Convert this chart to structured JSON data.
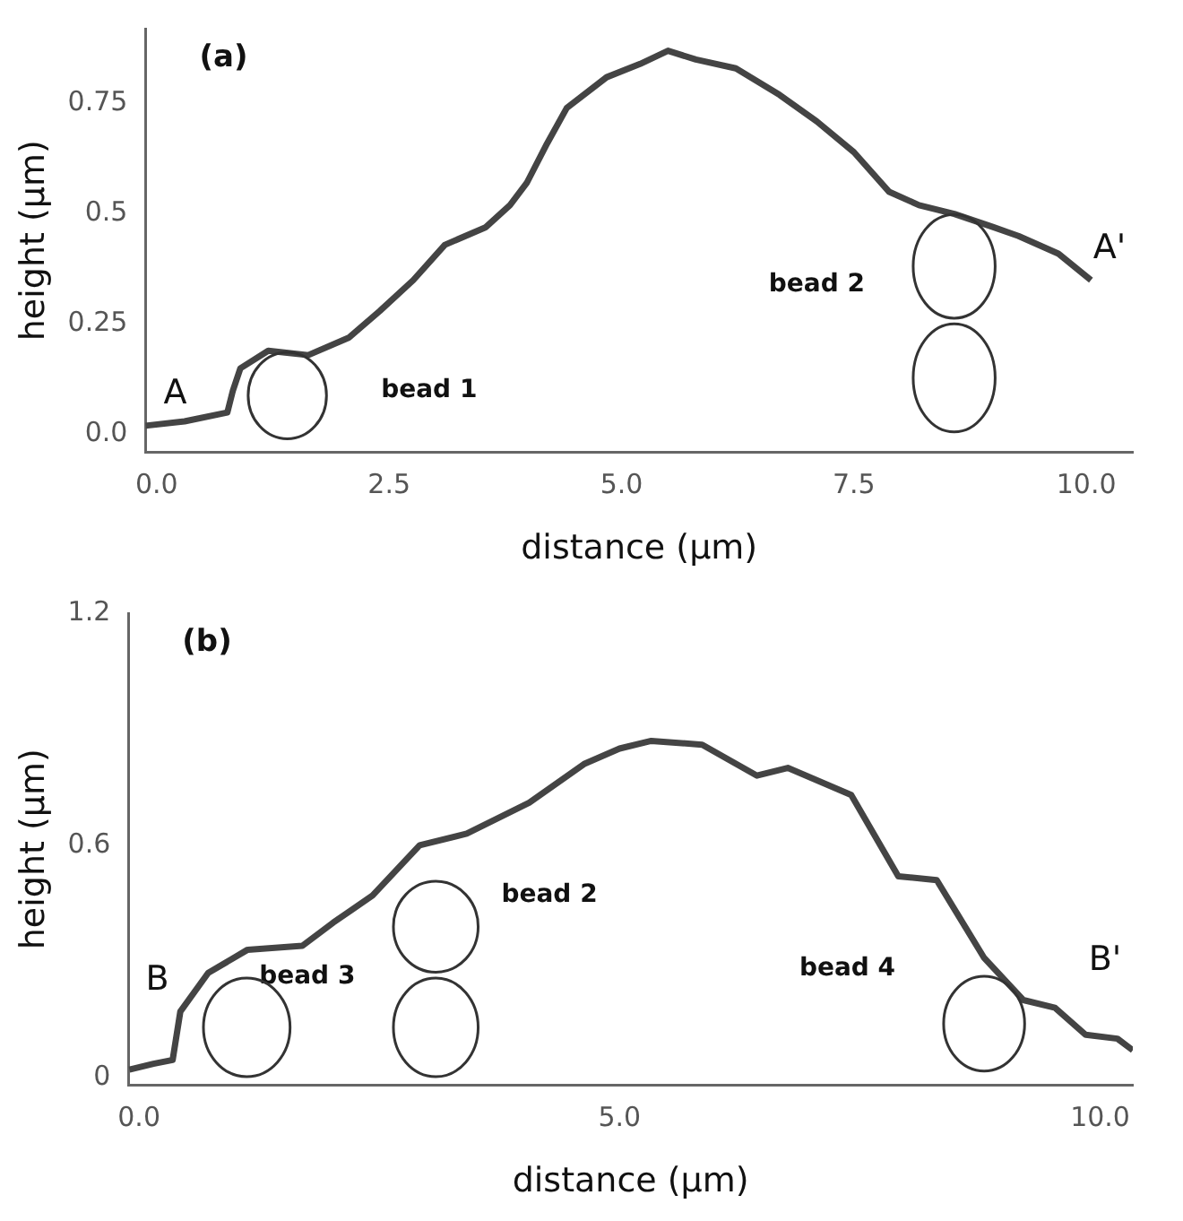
{
  "chart_data": [
    {
      "type": "line",
      "title": "(a)",
      "xlabel": "distance (µm)",
      "ylabel": "height (µm)",
      "color": "#444444",
      "x": [
        -0.12,
        0.3,
        0.76,
        0.82,
        0.9,
        1.2,
        1.63,
        2.07,
        2.4,
        2.76,
        3.1,
        3.54,
        3.8,
        3.98,
        4.2,
        4.41,
        4.84,
        5.2,
        5.5,
        5.8,
        6.23,
        6.7,
        7.1,
        7.5,
        7.88,
        8.2,
        8.58,
        9.0,
        9.27,
        9.7,
        10.05
      ],
      "values": [
        0.02,
        0.03,
        0.05,
        0.1,
        0.15,
        0.19,
        0.18,
        0.22,
        0.28,
        0.35,
        0.43,
        0.47,
        0.52,
        0.57,
        0.66,
        0.74,
        0.81,
        0.84,
        0.87,
        0.85,
        0.83,
        0.77,
        0.71,
        0.64,
        0.55,
        0.52,
        0.5,
        0.47,
        0.45,
        0.41,
        0.35
      ],
      "xlim": [
        -0.12,
        10.5
      ],
      "ylim": [
        -0.04,
        0.92
      ],
      "xticks": [
        {
          "value": 0,
          "label": "0.0"
        },
        2.5,
        {
          "value": 5,
          "label": "5.0"
        },
        7.5,
        {
          "value": 10,
          "label": "10.0"
        }
      ],
      "yticks": [
        {
          "value": 0,
          "label": "0.0"
        },
        0.25,
        0.5,
        0.75
      ],
      "grid": false,
      "legend": false,
      "marker": "none",
      "line_style": "solid",
      "annotations": [
        "A",
        "A'",
        "bead 1",
        "bead 2"
      ]
    },
    {
      "type": "line",
      "title": "(b)",
      "xlabel": "distance (µm)",
      "ylabel": "height (µm)",
      "color": "#444444",
      "x": [
        -0.1,
        0.15,
        0.35,
        0.43,
        0.72,
        1.13,
        1.7,
        2.02,
        2.43,
        2.92,
        3.41,
        4.06,
        4.63,
        5.0,
        5.33,
        5.86,
        6.43,
        6.75,
        7.41,
        7.9,
        8.3,
        8.79,
        9.2,
        9.53,
        9.85,
        10.18,
        10.34
      ],
      "values": [
        0.02,
        0.035,
        0.045,
        0.17,
        0.27,
        0.33,
        0.34,
        0.4,
        0.47,
        0.6,
        0.63,
        0.71,
        0.81,
        0.85,
        0.87,
        0.86,
        0.78,
        0.8,
        0.73,
        0.52,
        0.51,
        0.31,
        0.2,
        0.18,
        0.11,
        0.1,
        0.07
      ],
      "xlim": [
        -0.11,
        10.34
      ],
      "ylim": [
        -0.02,
        1.2
      ],
      "xticks": [
        {
          "value": 0,
          "label": "0.0"
        },
        {
          "value": 5,
          "label": "5.0"
        },
        {
          "value": 10,
          "label": "10.0"
        }
      ],
      "yticks": [
        0,
        0.6,
        1.2
      ],
      "grid": false,
      "legend": false,
      "marker": "none",
      "line_style": "solid",
      "annotations": [
        "B",
        "B'",
        "bead 3",
        "bead 2",
        "bead 4"
      ]
    }
  ]
}
